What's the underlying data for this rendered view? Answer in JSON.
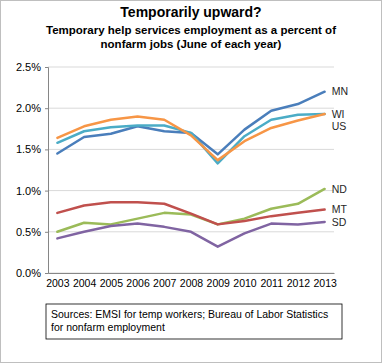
{
  "chart_data": {
    "type": "line",
    "title": "Temporarily upward?",
    "subtitle": "Temporary help services employment as a percent of nonfarm jobs (June of each year)",
    "annotations": [
      "Sources: EMSI for temp workers; Bureau of Labor Statistics for nonfarm employment"
    ],
    "categories": [
      "2003",
      "2004",
      "2005",
      "2006",
      "2007",
      "2008",
      "2009",
      "2010",
      "2011",
      "2012",
      "2013"
    ],
    "series": [
      {
        "name": "MN",
        "color": "#4a7ebb",
        "values": [
          1.45,
          1.65,
          1.69,
          1.78,
          1.72,
          1.7,
          1.44,
          1.74,
          1.97,
          2.05,
          2.2
        ]
      },
      {
        "name": "WI",
        "color": "#4bacc6",
        "values": [
          1.58,
          1.72,
          1.77,
          1.79,
          1.79,
          1.7,
          1.33,
          1.66,
          1.86,
          1.92,
          1.93
        ]
      },
      {
        "name": "US",
        "color": "#f79646",
        "values": [
          1.64,
          1.78,
          1.86,
          1.9,
          1.86,
          1.67,
          1.37,
          1.6,
          1.76,
          1.85,
          1.93
        ]
      },
      {
        "name": "ND",
        "color": "#9bbb59",
        "values": [
          0.5,
          0.61,
          0.59,
          0.66,
          0.73,
          0.71,
          0.59,
          0.66,
          0.78,
          0.84,
          1.02
        ]
      },
      {
        "name": "MT",
        "color": "#c0504d",
        "values": [
          0.73,
          0.82,
          0.86,
          0.86,
          0.84,
          0.72,
          0.59,
          0.63,
          0.69,
          0.73,
          0.77
        ]
      },
      {
        "name": "SD",
        "color": "#8064a2",
        "values": [
          0.42,
          0.5,
          0.57,
          0.6,
          0.56,
          0.5,
          0.32,
          0.48,
          0.6,
          0.59,
          0.62
        ]
      }
    ],
    "ylim": [
      0,
      2.5
    ],
    "yticks": [
      {
        "value": 0,
        "label": "0.0%"
      },
      {
        "value": 0.5,
        "label": "0.5%"
      },
      {
        "value": 1,
        "label": "1.0%"
      },
      {
        "value": 1.5,
        "label": "1.5%"
      },
      {
        "value": 2,
        "label": "2.0%"
      },
      {
        "value": 2.5,
        "label": "2.5%"
      }
    ],
    "grid": true
  }
}
